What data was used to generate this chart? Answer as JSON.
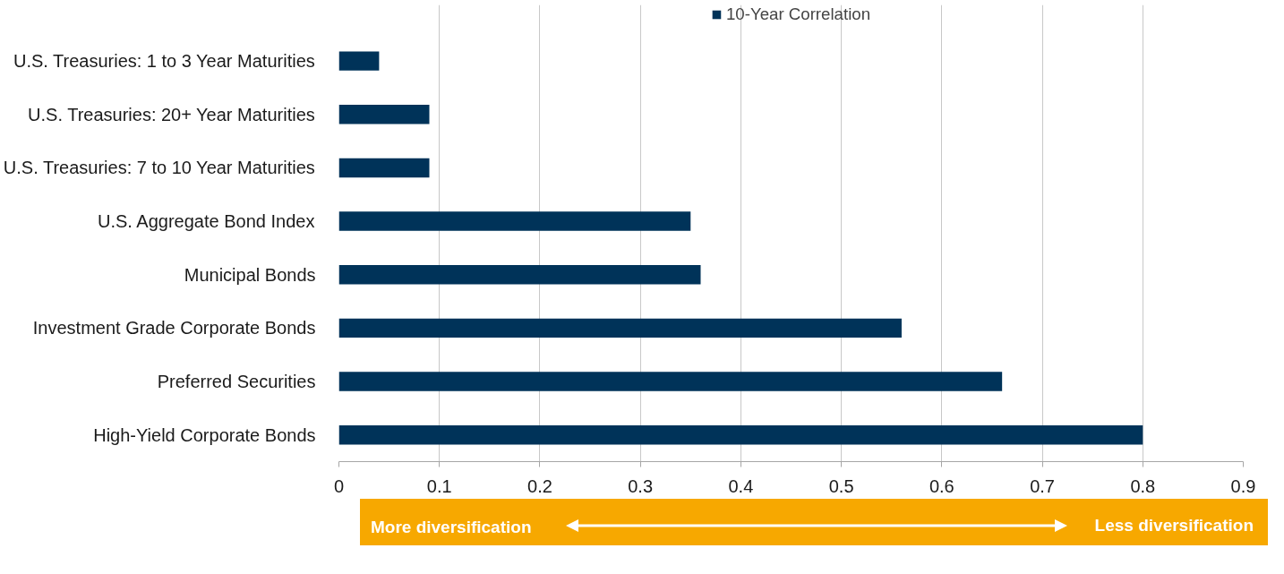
{
  "chart_data": {
    "type": "bar",
    "orientation": "horizontal",
    "categories": [
      "U.S. Treasuries: 1 to 3 Year Maturities",
      "U.S. Treasuries: 20+ Year Maturities",
      "U.S. Treasuries: 7 to 10 Year Maturities",
      "U.S. Aggregate Bond Index",
      "Municipal Bonds",
      "Investment Grade Corporate Bonds",
      "Preferred Securities",
      "High-Yield Corporate Bonds"
    ],
    "series": [
      {
        "name": "10-Year Correlation",
        "color": "#003359",
        "values": [
          0.04,
          0.09,
          0.09,
          0.35,
          0.36,
          0.56,
          0.66,
          0.8
        ]
      }
    ],
    "xlim": [
      0,
      0.9
    ],
    "xticks": [
      0,
      0.1,
      0.2,
      0.3,
      0.4,
      0.5,
      0.6,
      0.7,
      0.8,
      0.9
    ],
    "grid": "x",
    "legend": "top",
    "annotations": [
      "More diversification",
      "Less diversification"
    ]
  }
}
